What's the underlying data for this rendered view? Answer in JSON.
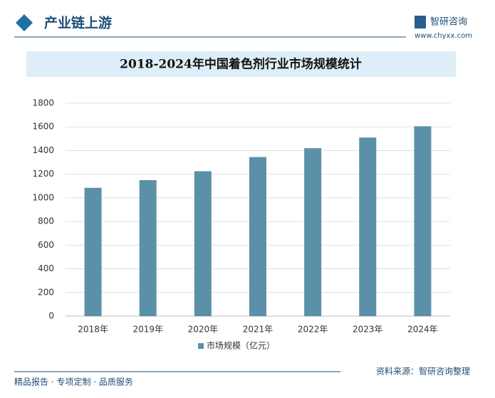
{
  "header": {
    "section": "产业链上游",
    "brand": "智研咨询",
    "url": "www.chyxx.com"
  },
  "chart_data": {
    "type": "bar",
    "title": "2018-2024年中国着色剂行业市场规模统计",
    "categories": [
      "2018年",
      "2019年",
      "2020年",
      "2021年",
      "2022年",
      "2023年",
      "2024年"
    ],
    "series": [
      {
        "name": "市场规模（亿元）",
        "color": "#5b91a8",
        "values": [
          1085,
          1150,
          1225,
          1345,
          1420,
          1510,
          1605
        ]
      }
    ],
    "ylim": [
      0,
      1800
    ],
    "yticks": [
      0,
      200,
      400,
      600,
      800,
      1000,
      1200,
      1400,
      1600,
      1800
    ],
    "grid": true,
    "legend": "bottom"
  },
  "footer": {
    "left": "精品报告 · 专项定制 · 品质服务",
    "right": "资料来源：智研咨询整理"
  }
}
